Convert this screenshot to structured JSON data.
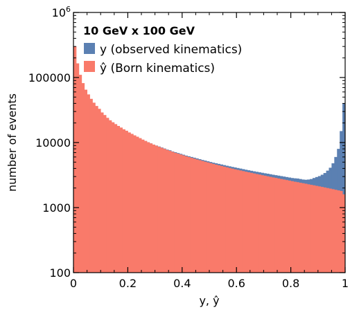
{
  "chart_data": {
    "type": "bar",
    "scale_y": "log",
    "title": "10 GeV x 100 GeV",
    "xlabel": "y, ŷ",
    "ylabel": "number of events",
    "xlim": [
      0,
      1
    ],
    "ylim": [
      100,
      1000000
    ],
    "x_ticks": [
      {
        "value": 0,
        "label": "0"
      },
      {
        "value": 0.2,
        "label": "0.2"
      },
      {
        "value": 0.4,
        "label": "0.4"
      },
      {
        "value": 0.6,
        "label": "0.6"
      },
      {
        "value": 0.8,
        "label": "0.8"
      },
      {
        "value": 1,
        "label": "1"
      }
    ],
    "y_ticks": [
      {
        "value": 100,
        "label": "100"
      },
      {
        "value": 1000,
        "label": "1000"
      },
      {
        "value": 10000,
        "label": "10000"
      },
      {
        "value": 100000,
        "label": "100000"
      },
      {
        "value": 1000000,
        "label_base": "10",
        "label_exp": "6"
      }
    ],
    "legend_position": "top-left",
    "bins": 100,
    "series": [
      {
        "name": "y (observed kinematics)",
        "color": "#5b80b2",
        "values": [
          68000,
          92000,
          72000,
          62000,
          52000,
          44000,
          40000,
          36000,
          32000,
          30000,
          27000,
          25000,
          23000,
          21000,
          19800,
          18500,
          17500,
          16500,
          15500,
          14700,
          13900,
          13200,
          12600,
          12000,
          11500,
          11000,
          10500,
          10100,
          9700,
          9300,
          9000,
          8700,
          8400,
          8100,
          7800,
          7600,
          7300,
          7100,
          6900,
          6700,
          6500,
          6300,
          6150,
          6000,
          5850,
          5700,
          5550,
          5400,
          5280,
          5150,
          5020,
          4900,
          4800,
          4700,
          4600,
          4500,
          4400,
          4310,
          4220,
          4140,
          4060,
          3980,
          3900,
          3820,
          3750,
          3680,
          3610,
          3550,
          3490,
          3430,
          3370,
          3320,
          3260,
          3200,
          3150,
          3100,
          3050,
          3000,
          2950,
          2900,
          2850,
          2820,
          2800,
          2750,
          2700,
          2680,
          2700,
          2750,
          2850,
          2950,
          3050,
          3200,
          3400,
          3700,
          4100,
          4800,
          6000,
          8000,
          15000,
          40000
        ]
      },
      {
        "name": "ŷ (Born kinematics)",
        "color": "#f97a6a",
        "values": [
          300000,
          165000,
          110000,
          82000,
          65000,
          55000,
          47000,
          41000,
          36500,
          33000,
          29000,
          26500,
          24000,
          22000,
          20500,
          19200,
          18000,
          17000,
          16000,
          15200,
          14300,
          13600,
          12900,
          12300,
          11700,
          11100,
          10600,
          10100,
          9700,
          9300,
          8950,
          8600,
          8300,
          8000,
          7700,
          7450,
          7200,
          6950,
          6750,
          6550,
          6350,
          6150,
          5980,
          5820,
          5660,
          5500,
          5360,
          5220,
          5080,
          4950,
          4820,
          4700,
          4580,
          4470,
          4360,
          4260,
          4160,
          4060,
          3970,
          3880,
          3800,
          3720,
          3640,
          3560,
          3490,
          3420,
          3350,
          3280,
          3220,
          3150,
          3090,
          3030,
          2970,
          2910,
          2860,
          2800,
          2750,
          2700,
          2650,
          2600,
          2550,
          2500,
          2460,
          2410,
          2370,
          2330,
          2280,
          2240,
          2200,
          2160,
          2120,
          2080,
          2040,
          2000,
          1960,
          1920,
          1880,
          1840,
          1800,
          1600
        ]
      }
    ]
  }
}
